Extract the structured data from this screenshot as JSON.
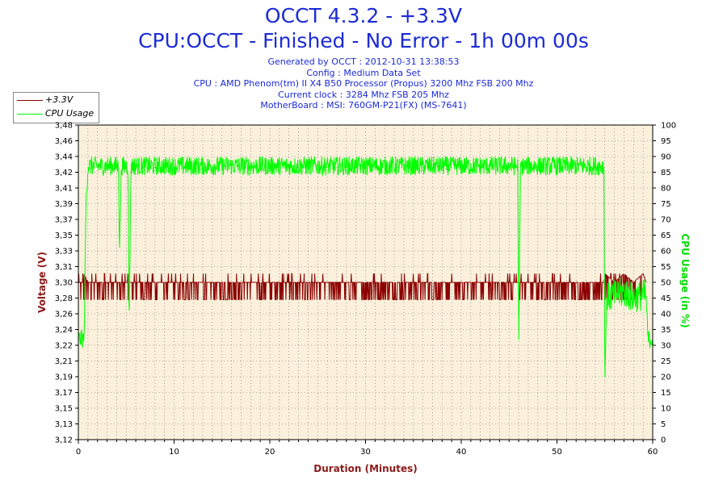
{
  "title_line1": "OCCT 4.3.2 - +3.3V",
  "title_line2": "CPU:OCCT - Finished - No Error - 1h 00m 00s",
  "info_lines": [
    "Generated by OCCT : 2012-10-31 13:38:53",
    "Config : Medium Data Set",
    "CPU : AMD Phenom(tm) II X4 B50 Processor (Propus) 3200 Mhz FSB 200 Mhz",
    "Current clock : 3284 Mhz FSB 205 Mhz",
    "MotherBoard : MSI: 760GM-P21(FX) (MS-7641)"
  ],
  "colors": {
    "title": "#1c2bd6",
    "voltage": "#8b0000",
    "cpu": "#00ff00",
    "plot_bg": "#faf0dc",
    "axis_label_voltage": "#8b1a1a",
    "axis_label_cpu": "#00dd00"
  },
  "chart_data": {
    "type": "line",
    "xlabel": "Duration (Minutes)",
    "ylabel_left": "Voltage (V)",
    "ylabel_right": "CPU Usage (in %)",
    "xlim": [
      0,
      60
    ],
    "x_ticks": [
      "0",
      "10",
      "20",
      "30",
      "40",
      "50",
      "60"
    ],
    "ylim_left": [
      3.12,
      3.48
    ],
    "y_ticks_left": [
      "3,12",
      "3,13",
      "3,15",
      "3,17",
      "3,19",
      "3,21",
      "3,22",
      "3,24",
      "3,26",
      "3,28",
      "3,30",
      "3,31",
      "3,33",
      "3,35",
      "3,37",
      "3,39",
      "3,41",
      "3,42",
      "3,44",
      "3,46",
      "3,48"
    ],
    "ylim_right": [
      0,
      100
    ],
    "y_ticks_right": [
      "0",
      "5",
      "10",
      "15",
      "20",
      "25",
      "30",
      "35",
      "40",
      "45",
      "50",
      "55",
      "60",
      "65",
      "70",
      "75",
      "80",
      "85",
      "90",
      "95",
      "100"
    ],
    "grid": true,
    "legend": "top-left",
    "series": [
      {
        "name": "+3.3V",
        "axis": "left",
        "x": [
          0,
          0.5,
          0.6,
          1.0,
          2.0,
          3.0,
          5.0,
          10.0,
          20.0,
          30.0,
          40.0,
          45.0,
          50.0,
          54.9,
          55.0,
          56.0,
          57.0,
          58.0,
          59.0,
          59.3
        ],
        "y": [
          3.3,
          3.3,
          3.31,
          3.3,
          3.3,
          3.3,
          3.3,
          3.3,
          3.3,
          3.3,
          3.3,
          3.3,
          3.3,
          3.3,
          3.31,
          3.3,
          3.31,
          3.3,
          3.31,
          3.3
        ],
        "range_low": 3.28,
        "range_high": 3.31
      },
      {
        "name": "CPU Usage",
        "axis": "right",
        "x": [
          0,
          0.6,
          0.8,
          1.0,
          4.2,
          4.3,
          4.5,
          5.2,
          5.3,
          5.5,
          10,
          20,
          30,
          40,
          45.9,
          46.0,
          46.2,
          50,
          54.9,
          55.0,
          55.2,
          56.0,
          57.0,
          58.0,
          59.0,
          59.3,
          59.5,
          60
        ],
        "y": [
          32,
          32,
          75,
          87,
          87,
          60,
          87,
          87,
          35,
          87,
          87,
          87,
          87,
          87,
          87,
          31,
          87,
          87,
          87,
          18,
          45,
          46,
          47,
          45,
          46,
          46,
          32,
          32
        ]
      }
    ]
  }
}
